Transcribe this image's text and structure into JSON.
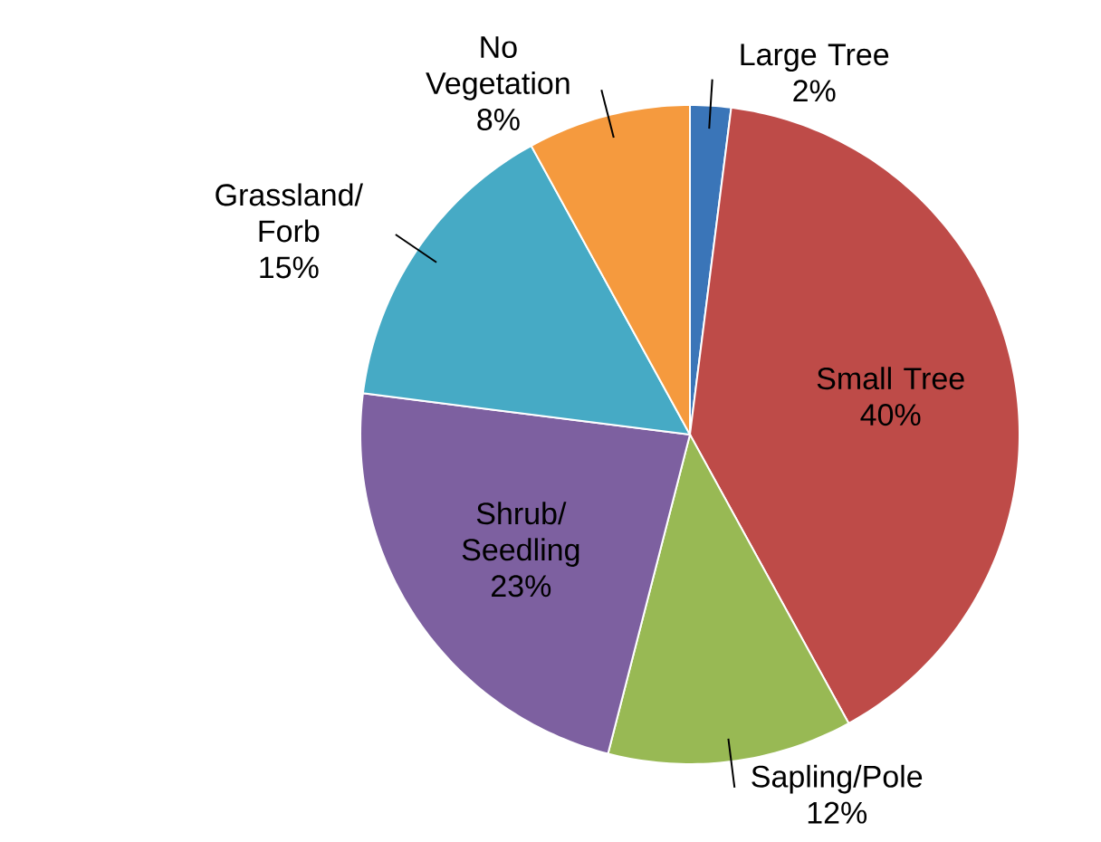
{
  "chart_data": {
    "type": "pie",
    "categories": [
      "Large Tree",
      "Small Tree",
      "Sapling/Pole",
      "Shrub/ Seedling",
      "Grassland/ Forb",
      "No Vegetation"
    ],
    "values": [
      2,
      40,
      12,
      23,
      15,
      8
    ],
    "value_labels": [
      "2%",
      "40%",
      "12%",
      "23%",
      "15%",
      "8%"
    ],
    "colors": [
      "#3a75b8",
      "#be4b48",
      "#98b954",
      "#7d60a0",
      "#46aac5",
      "#f59a3e"
    ]
  }
}
